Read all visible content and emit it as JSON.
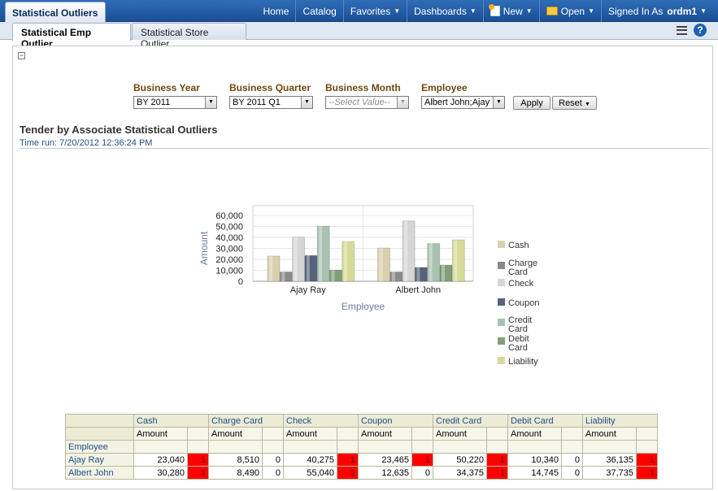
{
  "app": {
    "title": "Statistical Outliers"
  },
  "nav": {
    "home": "Home",
    "catalog": "Catalog",
    "favorites": "Favorites",
    "dashboards": "Dashboards",
    "new": "New",
    "open": "Open",
    "signed_in_as": "Signed In As",
    "user": "ordm1"
  },
  "tabs": [
    {
      "label": "Statistical Emp Outlier",
      "active": true
    },
    {
      "label": "Statistical Store Outlier",
      "active": false
    }
  ],
  "prompts": {
    "business_year": {
      "label": "Business Year",
      "value": "BY 2011"
    },
    "business_quarter": {
      "label": "Business Quarter",
      "value": "BY 2011 Q1"
    },
    "business_month": {
      "label": "Business Month",
      "value": "--Select Value--"
    },
    "employee": {
      "label": "Employee",
      "value": "Albert John;Ajay"
    },
    "apply": "Apply",
    "reset": "Reset"
  },
  "report": {
    "title": "Tender by Associate Statistical Outliers",
    "time_run": "Time run: 7/20/2012 12:36:24 PM"
  },
  "chart_data": {
    "type": "bar",
    "xlabel": "Employee",
    "ylabel": "Amount",
    "ylim": [
      0,
      60000
    ],
    "yticks": [
      "0",
      "10,000",
      "20,000",
      "30,000",
      "40,000",
      "50,000",
      "60,000"
    ],
    "categories": [
      "Ajay Ray",
      "Albert John"
    ],
    "legend_position": "right",
    "series": [
      {
        "name": "Cash",
        "values": [
          23040,
          30280
        ],
        "color": "#d8cfae"
      },
      {
        "name": "Charge Card",
        "values": [
          8510,
          8490
        ],
        "color": "#8a8a8a"
      },
      {
        "name": "Check",
        "values": [
          40275,
          55040
        ],
        "color": "#d6d6d6"
      },
      {
        "name": "Coupon",
        "values": [
          23465,
          12635
        ],
        "color": "#56627a"
      },
      {
        "name": "Credit Card",
        "values": [
          50220,
          34375
        ],
        "color": "#a9c1b1"
      },
      {
        "name": "Debit Card",
        "values": [
          10340,
          14745
        ],
        "color": "#7f9f78"
      },
      {
        "name": "Liability",
        "values": [
          36135,
          37735
        ],
        "color": "#d6da98"
      }
    ]
  },
  "table": {
    "row_header": "Employee",
    "measure_label": "Amount",
    "columns": [
      "Cash",
      "Charge Card",
      "Check",
      "Coupon",
      "Credit Card",
      "Debit Card",
      "Liability"
    ],
    "rows": [
      {
        "name": "Ajay Ray",
        "cells": [
          {
            "amount": "23,040",
            "flag": "1"
          },
          {
            "amount": "8,510",
            "flag": "0"
          },
          {
            "amount": "40,275",
            "flag": "1"
          },
          {
            "amount": "23,465",
            "flag": "1"
          },
          {
            "amount": "50,220",
            "flag": "1"
          },
          {
            "amount": "10,340",
            "flag": "0"
          },
          {
            "amount": "36,135",
            "flag": "1"
          }
        ]
      },
      {
        "name": "Albert John",
        "cells": [
          {
            "amount": "30,280",
            "flag": "1"
          },
          {
            "amount": "8,490",
            "flag": "0"
          },
          {
            "amount": "55,040",
            "flag": "1"
          },
          {
            "amount": "12,635",
            "flag": "0"
          },
          {
            "amount": "34,375",
            "flag": "1"
          },
          {
            "amount": "14,745",
            "flag": "0"
          },
          {
            "amount": "37,735",
            "flag": "1"
          }
        ]
      }
    ],
    "flag_color": "#ff0000"
  }
}
